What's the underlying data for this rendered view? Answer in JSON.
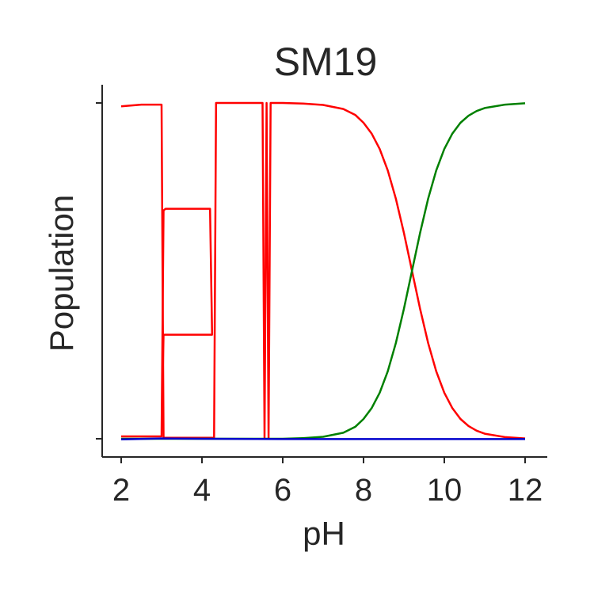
{
  "chart_data": {
    "type": "line",
    "title": "SM19",
    "xlabel": "pH",
    "ylabel": "Population",
    "xlim": [
      1.5,
      12.6
    ],
    "ylim": [
      -0.05,
      1.02
    ],
    "xticks": [
      2,
      4,
      6,
      8,
      10,
      12
    ],
    "xtick_labels": [
      "2",
      "4",
      "6",
      "8",
      "10",
      "12"
    ],
    "yticks": [
      0,
      1
    ],
    "ytick_labels": [
      "",
      ""
    ],
    "grid": false,
    "series": [
      {
        "color": "#ff0000",
        "points": [
          [
            2.0,
            0.99
          ],
          [
            2.5,
            0.995
          ],
          [
            3.0,
            0.995
          ],
          [
            3.05,
            0.003
          ],
          [
            4.3,
            0.003
          ],
          [
            4.35,
            1.0
          ],
          [
            5.5,
            1.0
          ],
          [
            5.55,
            0.002
          ],
          [
            5.6,
            1.0
          ],
          [
            5.65,
            0.002
          ],
          [
            5.7,
            1.0
          ],
          [
            6.0,
            1.0
          ],
          [
            6.5,
            0.998
          ],
          [
            7.0,
            0.994
          ],
          [
            7.5,
            0.982
          ],
          [
            7.8,
            0.964
          ],
          [
            8.0,
            0.941
          ],
          [
            8.2,
            0.909
          ],
          [
            8.4,
            0.863
          ],
          [
            8.6,
            0.799
          ],
          [
            8.8,
            0.715
          ],
          [
            9.0,
            0.613
          ],
          [
            9.2,
            0.5
          ],
          [
            9.4,
            0.387
          ],
          [
            9.6,
            0.285
          ],
          [
            9.8,
            0.201
          ],
          [
            10.0,
            0.137
          ],
          [
            10.2,
            0.091
          ],
          [
            10.4,
            0.059
          ],
          [
            10.6,
            0.038
          ],
          [
            10.8,
            0.024
          ],
          [
            11.0,
            0.015
          ],
          [
            11.5,
            0.005
          ],
          [
            12.0,
            0.001
          ]
        ]
      },
      {
        "color": "#ff0000",
        "points": [
          [
            2.0,
            0.007
          ],
          [
            2.5,
            0.007
          ],
          [
            3.0,
            0.007
          ],
          [
            3.05,
            0.68
          ],
          [
            3.1,
            0.685
          ],
          [
            4.2,
            0.685
          ],
          [
            4.25,
            0.31
          ],
          [
            3.1,
            0.31
          ],
          [
            3.05,
            0.31
          ],
          [
            3.0,
            0.007
          ]
        ]
      },
      {
        "color": "#008000",
        "points": [
          [
            2.0,
            0.0
          ],
          [
            6.0,
            0.0
          ],
          [
            6.5,
            0.002
          ],
          [
            7.0,
            0.006
          ],
          [
            7.5,
            0.018
          ],
          [
            7.8,
            0.036
          ],
          [
            8.0,
            0.059
          ],
          [
            8.2,
            0.091
          ],
          [
            8.4,
            0.137
          ],
          [
            8.6,
            0.201
          ],
          [
            8.8,
            0.285
          ],
          [
            9.0,
            0.387
          ],
          [
            9.2,
            0.5
          ],
          [
            9.4,
            0.613
          ],
          [
            9.6,
            0.715
          ],
          [
            9.8,
            0.799
          ],
          [
            10.0,
            0.863
          ],
          [
            10.2,
            0.909
          ],
          [
            10.4,
            0.941
          ],
          [
            10.6,
            0.962
          ],
          [
            10.8,
            0.976
          ],
          [
            11.0,
            0.985
          ],
          [
            11.5,
            0.995
          ],
          [
            12.0,
            0.999
          ]
        ]
      },
      {
        "color": "#0000cc",
        "points": [
          [
            2.0,
            -0.002
          ],
          [
            3.0,
            0.001
          ],
          [
            4.0,
            0.0
          ],
          [
            6.0,
            -0.001
          ],
          [
            8.0,
            -0.001
          ],
          [
            10.0,
            -0.001
          ],
          [
            12.0,
            -0.001
          ]
        ]
      }
    ]
  }
}
